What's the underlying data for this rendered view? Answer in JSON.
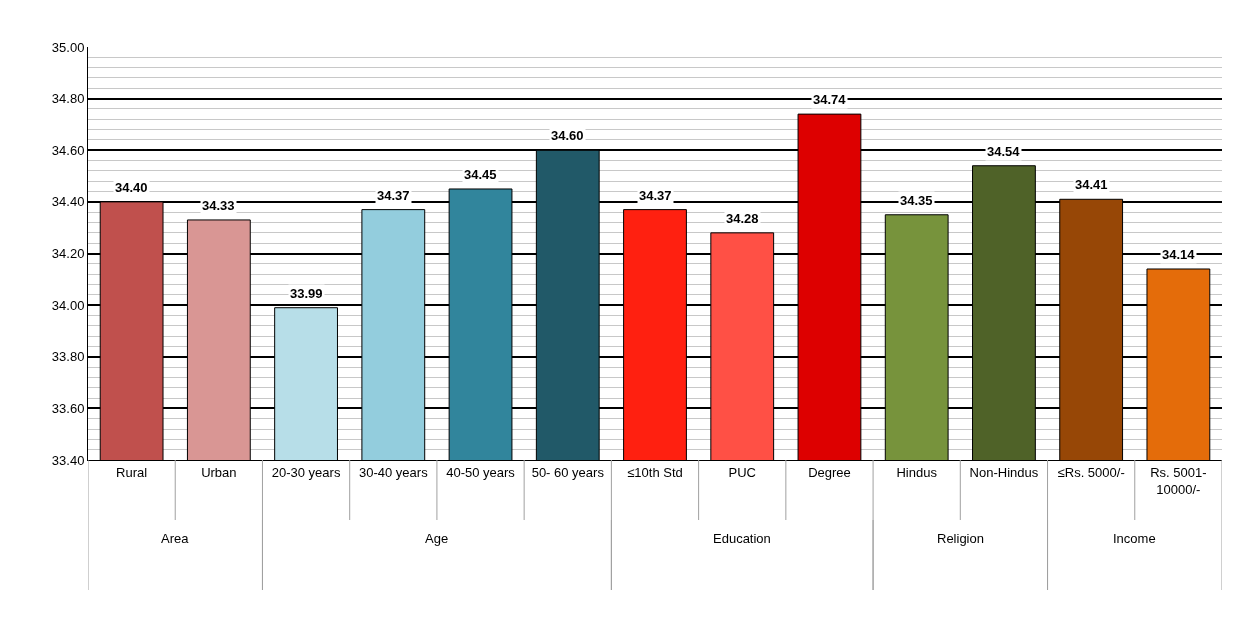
{
  "chart_data": {
    "type": "bar",
    "categories": [
      "Rural",
      "Urban",
      "20-30 years",
      "30-40 years",
      "40-50 years",
      "50- 60 years",
      "≤10th Std",
      "PUC",
      "Degree",
      "Hindus",
      "Non-Hindus",
      "≤Rs. 5000/-",
      "Rs. 5001-10000/-"
    ],
    "values": [
      34.4,
      34.33,
      33.99,
      34.37,
      34.45,
      34.6,
      34.37,
      34.28,
      34.74,
      34.35,
      34.54,
      34.41,
      34.14
    ],
    "colors": [
      "#c0504d",
      "#d99694",
      "#b7dee8",
      "#93cddd",
      "#31859c",
      "#215968",
      "#ff2010",
      "#ff5045",
      "#dd0000",
      "#77933c",
      "#4f6228",
      "#974706",
      "#e46c0a"
    ],
    "value_labels": [
      "34.40",
      "34.33",
      "33.99",
      "34.37",
      "34.45",
      "34.60",
      "34.37",
      "34.28",
      "34.74",
      "34.35",
      "34.54",
      "34.41",
      "34.14"
    ],
    "ylim": [
      33.4,
      35.0
    ],
    "yticks": [
      {
        "value": 33.4,
        "label": "33.40"
      },
      {
        "value": 33.6,
        "label": "33.60"
      },
      {
        "value": 33.8,
        "label": "33.80"
      },
      {
        "value": 34.0,
        "label": "34.00"
      },
      {
        "value": 34.2,
        "label": "34.20"
      },
      {
        "value": 34.4,
        "label": "34.40"
      },
      {
        "value": 34.6,
        "label": "34.60"
      },
      {
        "value": 34.8,
        "label": "34.80"
      },
      {
        "value": 35.0,
        "label": "35.00"
      }
    ],
    "grid": "y",
    "annotations": [
      "Area",
      "Age",
      "Education",
      "Religion",
      "Income"
    ]
  }
}
